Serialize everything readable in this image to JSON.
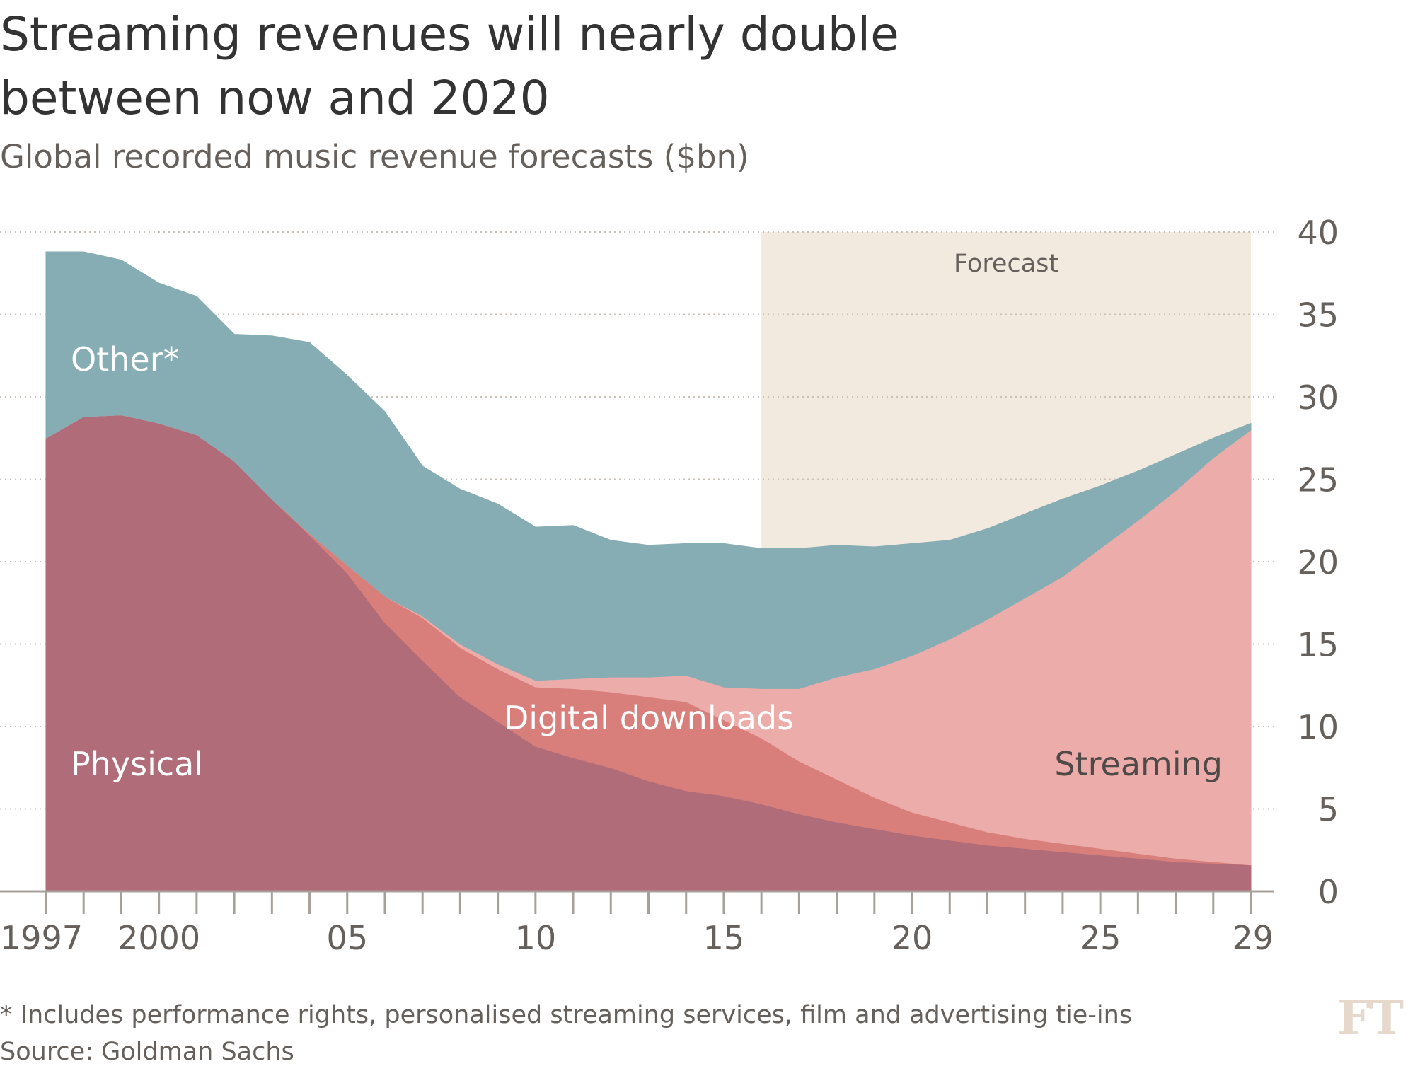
{
  "title": "Streaming revenues will nearly double between now and 2020",
  "subtitle": "Global recorded music revenue forecasts ($bn)",
  "footnote": "* Includes performance rights, personalised streaming services, film and advertising tie-ins",
  "source": "Source: Goldman Sachs",
  "logo": "FT",
  "chart_data": {
    "type": "area",
    "stacked": true,
    "x": [
      1997,
      1998,
      1999,
      2000,
      2001,
      2002,
      2003,
      2004,
      2005,
      2006,
      2007,
      2008,
      2009,
      2010,
      2011,
      2012,
      2013,
      2014,
      2015,
      2016,
      2017,
      2018,
      2019,
      2020,
      2021,
      2022,
      2023,
      2024,
      2025,
      2026,
      2027,
      2028,
      2029
    ],
    "x_tick_values": [
      1997,
      2000,
      2005,
      2010,
      2015,
      2020,
      2025,
      2029
    ],
    "x_tick_labels": [
      "1997",
      "2000",
      "05",
      "10",
      "15",
      "20",
      "25",
      "29"
    ],
    "ylim": [
      0,
      40
    ],
    "y_ticks": [
      0,
      5,
      10,
      15,
      20,
      25,
      30,
      35,
      40
    ],
    "y_axis_side": "right",
    "grid": "horizontal dotted",
    "series": [
      {
        "name": "Physical",
        "color": "#b06c79",
        "values": [
          27.5,
          28.8,
          28.9,
          28.4,
          27.7,
          26.1,
          23.8,
          21.6,
          19.3,
          16.3,
          14.0,
          11.8,
          10.3,
          8.8,
          8.1,
          7.5,
          6.7,
          6.1,
          5.8,
          5.3,
          4.7,
          4.2,
          3.8,
          3.4,
          3.1,
          2.8,
          2.6,
          2.4,
          2.2,
          2.0,
          1.8,
          1.7,
          1.6
        ]
      },
      {
        "name": "Digital downloads",
        "color": "#d87f7b",
        "values": [
          0,
          0,
          0,
          0,
          0,
          0,
          0,
          0.1,
          0.5,
          1.6,
          2.6,
          3.0,
          3.2,
          3.6,
          4.2,
          4.6,
          5.1,
          5.4,
          4.6,
          4.0,
          3.2,
          2.6,
          1.9,
          1.4,
          1.1,
          0.8,
          0.6,
          0.5,
          0.4,
          0.3,
          0.2,
          0.1,
          0
        ]
      },
      {
        "name": "Streaming",
        "color": "#ebacaa",
        "values": [
          0,
          0,
          0,
          0,
          0,
          0,
          0,
          0,
          0,
          0,
          0.1,
          0.2,
          0.3,
          0.4,
          0.6,
          0.9,
          1.2,
          1.6,
          2.0,
          3.0,
          4.4,
          6.2,
          7.8,
          9.5,
          11.1,
          12.9,
          14.6,
          16.2,
          18.2,
          20.2,
          22.3,
          24.5,
          26.4
        ]
      },
      {
        "name": "Other*",
        "color": "#86adb4",
        "values": [
          11.3,
          10.0,
          9.4,
          8.5,
          8.4,
          7.7,
          9.9,
          11.6,
          11.5,
          11.2,
          9.1,
          9.4,
          9.7,
          9.3,
          9.3,
          8.3,
          8.0,
          8.0,
          8.7,
          8.5,
          8.5,
          8.0,
          7.4,
          6.8,
          6.0,
          5.5,
          5.1,
          4.7,
          3.8,
          3.0,
          2.2,
          1.2,
          0.4
        ]
      }
    ],
    "forecast_region": {
      "x_start": 2016,
      "x_end": 2029,
      "label": "Forecast",
      "color": "#f3eadf"
    },
    "annotations": [
      {
        "text": "Other*",
        "series": "Other*"
      },
      {
        "text": "Digital downloads",
        "series": "Digital downloads"
      },
      {
        "text": "Physical",
        "series": "Physical"
      },
      {
        "text": "Streaming",
        "series": "Streaming"
      }
    ]
  }
}
